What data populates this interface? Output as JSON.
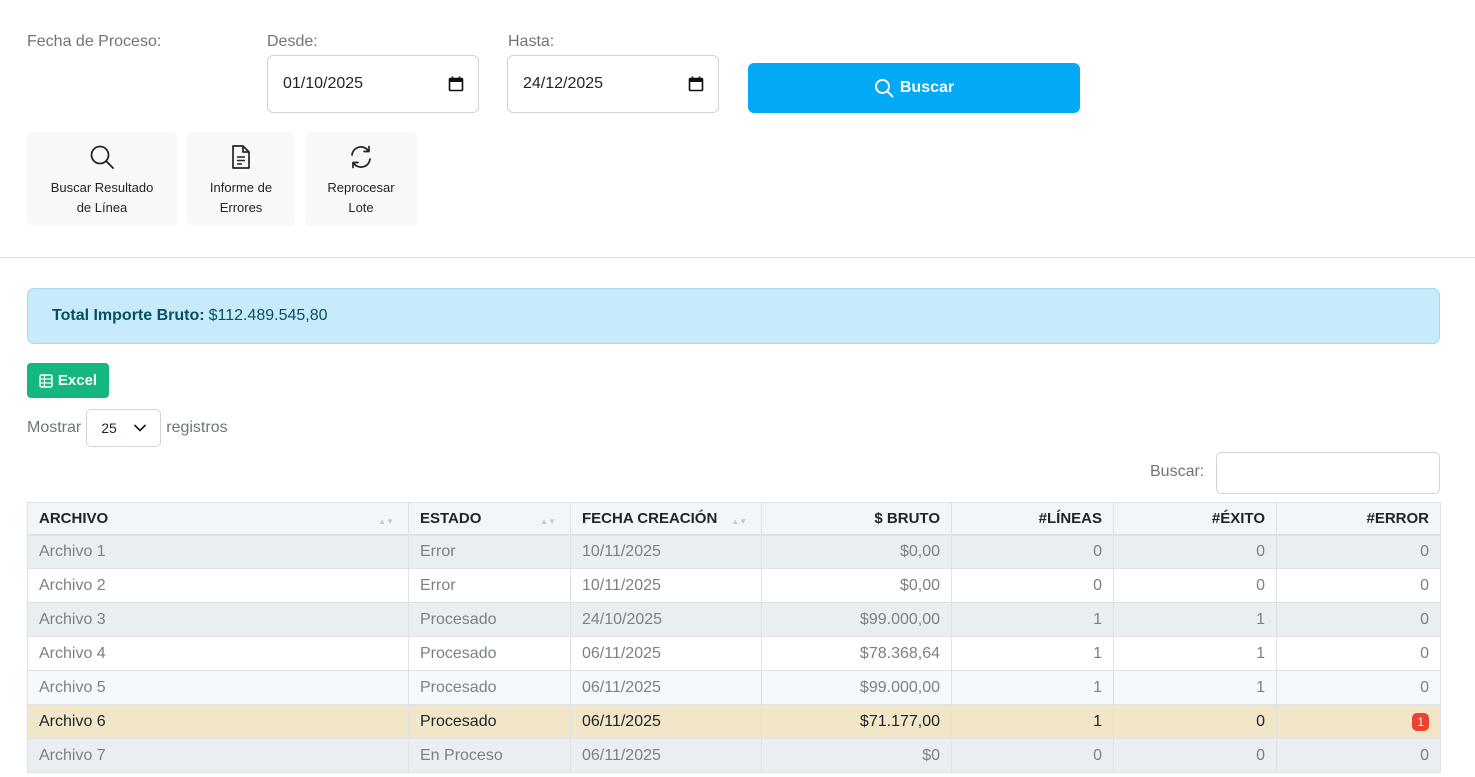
{
  "filters": {
    "fecha_label": "Fecha de Proceso:",
    "desde_label": "Desde:",
    "desde_value": "01/10/2025",
    "hasta_label": "Hasta:",
    "hasta_value": "24/12/2025",
    "search_button": "Buscar"
  },
  "tools": {
    "buscar_resultado_line1": "Buscar Resultado",
    "buscar_resultado_line2": "de Línea",
    "informe_line1": "Informe de",
    "informe_line2": "Errores",
    "reprocesar_line1": "Reprocesar",
    "reprocesar_line2": "Lote"
  },
  "summary": {
    "label": "Total Importe Bruto:",
    "value": "$112.489.545,80"
  },
  "excel_button": "Excel",
  "length_menu": {
    "prefix": "Mostrar",
    "value": "25",
    "suffix": "registros"
  },
  "search_label": "Buscar:",
  "table": {
    "headers": [
      "ARCHIVO",
      "ESTADO",
      "FECHA CREACIÓN",
      "$ BRUTO",
      "#LÍNEAS",
      "#ÉXITO",
      "#ERROR"
    ],
    "rows": [
      [
        "Archivo 1",
        "Error",
        "10/11/2025",
        "$0,00",
        "0",
        "0",
        "0"
      ],
      [
        "Archivo 2",
        "Error",
        "10/11/2025",
        "$0,00",
        "0",
        "0",
        "0"
      ],
      [
        "Archivo 3",
        "Procesado",
        "24/10/2025",
        "$99.000,00",
        "1",
        "1",
        "0"
      ],
      [
        "Archivo 4",
        "Procesado",
        "06/11/2025",
        "$78.368,64",
        "1",
        "1",
        "0"
      ],
      [
        "Archivo 5",
        "Procesado",
        "06/11/2025",
        "$99.000,00",
        "1",
        "1",
        "0"
      ],
      [
        "Archivo 6",
        "Procesado",
        "06/11/2025",
        "$71.177,00",
        "1",
        "0",
        "1"
      ],
      [
        "Archivo 7",
        "En Proceso",
        "06/11/2025",
        "$0",
        "0",
        "0",
        "0"
      ]
    ]
  },
  "colors": {
    "primary": "#03a9f4",
    "excel": "#13b77f",
    "alert_bg": "#c7ebf9",
    "highlight_row": "#f1e6c8",
    "error_badge": "#f0412e"
  }
}
